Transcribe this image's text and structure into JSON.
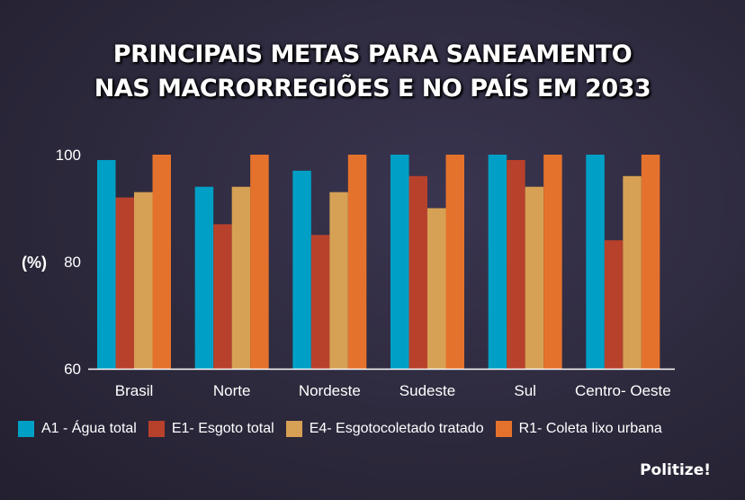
{
  "chart_data": {
    "type": "bar",
    "title": [
      "PRINCIPAIS METAS PARA SANEAMENTO",
      "NAS MACRORREGIÕES E NO PAÍS EM 2033"
    ],
    "ylabel": "(%)",
    "ylim": [
      60,
      100
    ],
    "yticks": [
      "100",
      "80",
      "60"
    ],
    "categories": [
      "Brasil",
      "Norte",
      "Nordeste",
      "Sudeste",
      "Sul",
      "Centro- Oeste"
    ],
    "series": [
      {
        "name": "A1 - Água total",
        "color": "#00a0c6",
        "values": [
          99,
          94,
          97,
          100,
          100,
          100
        ]
      },
      {
        "name": "E1- Esgoto total",
        "color": "#b8412c",
        "values": [
          92,
          87,
          85,
          96,
          99,
          84
        ]
      },
      {
        "name": "E4- Esgotocoletado tratado",
        "color": "#d6a154",
        "values": [
          93,
          94,
          93,
          90,
          94,
          96
        ]
      },
      {
        "name": "R1- Coleta lixo urbana",
        "color": "#e5722c",
        "values": [
          100,
          100,
          100,
          100,
          100,
          100
        ]
      }
    ],
    "grid": false,
    "legend": "bottom"
  },
  "brand": "Politize!"
}
